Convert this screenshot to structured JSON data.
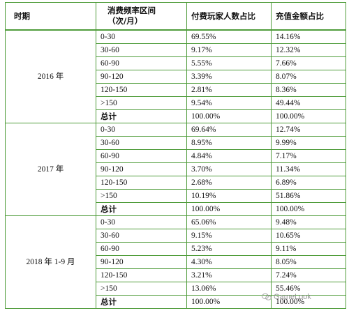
{
  "headers": {
    "period": "时期",
    "range_line1": "消费频率区间",
    "range_line2": "（次/月）",
    "players": "付费玩家人数占比",
    "revenue": "充值金额占比"
  },
  "groups": [
    {
      "period": "2016 年",
      "rows": [
        {
          "range": "0-30",
          "players": "69.55%",
          "revenue": "14.16%"
        },
        {
          "range": "30-60",
          "players": "9.17%",
          "revenue": "12.32%"
        },
        {
          "range": "60-90",
          "players": "5.55%",
          "revenue": "7.66%"
        },
        {
          "range": "90-120",
          "players": "3.39%",
          "revenue": "8.07%"
        },
        {
          "range": "120-150",
          "players": "2.81%",
          "revenue": "8.36%"
        },
        {
          "range": ">150",
          "players": "9.54%",
          "revenue": "49.44%"
        },
        {
          "range": "总计",
          "players": "100.00%",
          "revenue": "100.00%"
        }
      ]
    },
    {
      "period": "2017 年",
      "rows": [
        {
          "range": "0-30",
          "players": "69.64%",
          "revenue": "12.74%"
        },
        {
          "range": "30-60",
          "players": "8.95%",
          "revenue": "9.99%"
        },
        {
          "range": "60-90",
          "players": "4.84%",
          "revenue": "7.17%"
        },
        {
          "range": "90-120",
          "players": "3.70%",
          "revenue": "11.34%"
        },
        {
          "range": "120-150",
          "players": "2.68%",
          "revenue": "6.89%"
        },
        {
          "range": ">150",
          "players": "10.19%",
          "revenue": "51.86%"
        },
        {
          "range": "总计",
          "players": "100.00%",
          "revenue": "100.00%"
        }
      ]
    },
    {
      "period": "2018 年 1-9 月",
      "rows": [
        {
          "range": "0-30",
          "players": "65.06%",
          "revenue": "9.48%"
        },
        {
          "range": "30-60",
          "players": "9.15%",
          "revenue": "10.65%"
        },
        {
          "range": "60-90",
          "players": "5.23%",
          "revenue": "9.11%"
        },
        {
          "range": "90-120",
          "players": "4.30%",
          "revenue": "8.05%"
        },
        {
          "range": "120-150",
          "players": "3.21%",
          "revenue": "7.24%"
        },
        {
          "range": ">150",
          "players": "13.06%",
          "revenue": "55.46%"
        },
        {
          "range": "总计",
          "players": "100.00%",
          "revenue": "100.00%"
        }
      ]
    }
  ],
  "watermark": {
    "text": "GameLook",
    "icon": "wechat-icon"
  },
  "colors": {
    "border": "#4f9c3a",
    "text": "#111111",
    "watermark": "#8a8a8a"
  }
}
